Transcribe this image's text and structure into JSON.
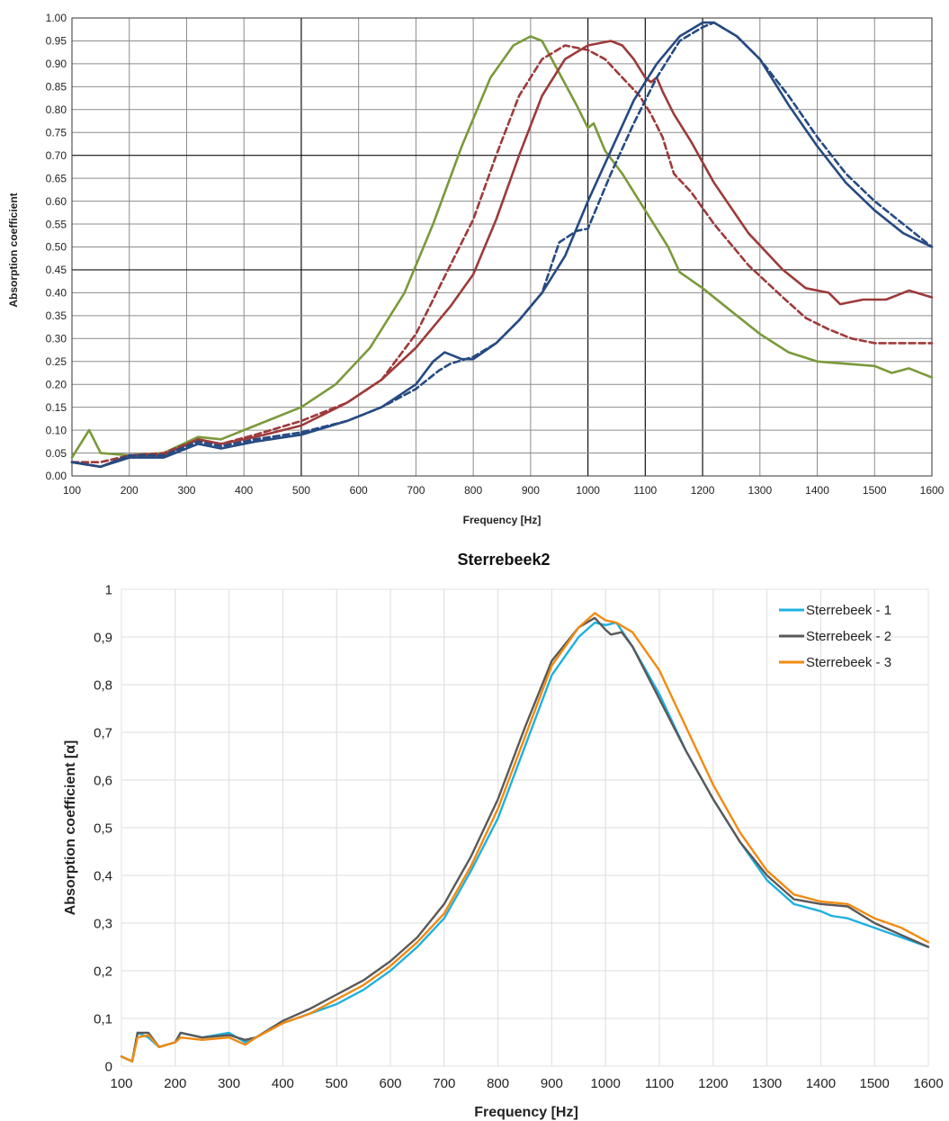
{
  "chart_data": [
    {
      "type": "line",
      "title": "",
      "xlabel": "Frequency [Hz]",
      "ylabel": "Absorption coefficient",
      "xlim": [
        100,
        1600
      ],
      "ylim": [
        0,
        1
      ],
      "grid": true,
      "legend": "none",
      "x_ticks": [
        "100",
        "200",
        "300",
        "400",
        "500",
        "600",
        "700",
        "800",
        "900",
        "1000",
        "1100",
        "1200",
        "1300",
        "1400",
        "1500",
        "1600"
      ],
      "y_ticks": [
        "0.00",
        "0.05",
        "0.10",
        "0.15",
        "0.20",
        "0.25",
        "0.30",
        "0.35",
        "0.40",
        "0.45",
        "0.50",
        "0.55",
        "0.60",
        "0.65",
        "0.70",
        "0.75",
        "0.80",
        "0.85",
        "0.90",
        "0.95",
        "1.00"
      ],
      "series": [
        {
          "color": "#7a9a3a",
          "dash": "solid",
          "x": [
            100,
            130,
            150,
            200,
            260,
            320,
            360,
            420,
            500,
            560,
            620,
            680,
            730,
            780,
            830,
            870,
            900,
            920,
            950,
            980,
            1000,
            1010,
            1030,
            1060,
            1100,
            1140,
            1160,
            1200,
            1250,
            1300,
            1350,
            1400,
            1450,
            1500,
            1530,
            1560,
            1600
          ],
          "y": [
            0.04,
            0.1,
            0.05,
            0.045,
            0.05,
            0.085,
            0.08,
            0.11,
            0.15,
            0.2,
            0.28,
            0.4,
            0.55,
            0.72,
            0.87,
            0.94,
            0.96,
            0.95,
            0.88,
            0.81,
            0.76,
            0.77,
            0.71,
            0.66,
            0.58,
            0.5,
            0.445,
            0.41,
            0.36,
            0.31,
            0.27,
            0.25,
            0.245,
            0.24,
            0.225,
            0.235,
            0.215
          ]
        },
        {
          "color": "#9e3a3a",
          "dash": "dashed",
          "x": [
            100,
            150,
            200,
            260,
            320,
            360,
            420,
            500,
            580,
            640,
            700,
            760,
            800,
            840,
            880,
            920,
            960,
            1000,
            1030,
            1060,
            1090,
            1110,
            1130,
            1150,
            1180,
            1220,
            1280,
            1340,
            1380,
            1420,
            1460,
            1500,
            1550,
            1600
          ],
          "y": [
            0.03,
            0.03,
            0.045,
            0.05,
            0.08,
            0.07,
            0.09,
            0.12,
            0.16,
            0.21,
            0.31,
            0.46,
            0.56,
            0.7,
            0.83,
            0.91,
            0.94,
            0.93,
            0.91,
            0.87,
            0.83,
            0.79,
            0.74,
            0.66,
            0.62,
            0.55,
            0.46,
            0.39,
            0.345,
            0.32,
            0.3,
            0.29,
            0.29,
            0.29
          ]
        },
        {
          "color": "#9e3a3a",
          "dash": "solid",
          "x": [
            100,
            150,
            200,
            260,
            320,
            360,
            420,
            500,
            580,
            640,
            700,
            760,
            800,
            840,
            880,
            920,
            960,
            1000,
            1040,
            1060,
            1080,
            1100,
            1110,
            1120,
            1130,
            1150,
            1180,
            1220,
            1280,
            1340,
            1380,
            1420,
            1440,
            1480,
            1520,
            1560,
            1600
          ],
          "y": [
            0.03,
            0.02,
            0.045,
            0.045,
            0.08,
            0.07,
            0.085,
            0.11,
            0.16,
            0.21,
            0.28,
            0.37,
            0.44,
            0.56,
            0.7,
            0.83,
            0.91,
            0.94,
            0.95,
            0.94,
            0.91,
            0.87,
            0.86,
            0.87,
            0.84,
            0.79,
            0.73,
            0.64,
            0.53,
            0.45,
            0.41,
            0.4,
            0.375,
            0.385,
            0.385,
            0.405,
            0.39
          ]
        },
        {
          "color": "#264a82",
          "dash": "dashed",
          "x": [
            100,
            150,
            200,
            260,
            320,
            360,
            420,
            500,
            580,
            640,
            700,
            740,
            760,
            800,
            840,
            880,
            920,
            950,
            980,
            1000,
            1040,
            1080,
            1120,
            1160,
            1200,
            1220,
            1260,
            1300,
            1350,
            1400,
            1450,
            1500,
            1560,
            1600
          ],
          "y": [
            0.03,
            0.02,
            0.045,
            0.045,
            0.075,
            0.065,
            0.08,
            0.095,
            0.12,
            0.15,
            0.19,
            0.23,
            0.245,
            0.26,
            0.29,
            0.34,
            0.4,
            0.51,
            0.535,
            0.54,
            0.66,
            0.77,
            0.87,
            0.95,
            0.98,
            0.99,
            0.96,
            0.91,
            0.83,
            0.74,
            0.66,
            0.6,
            0.54,
            0.5
          ]
        },
        {
          "color": "#264a82",
          "dash": "solid",
          "x": [
            100,
            150,
            200,
            260,
            320,
            360,
            420,
            500,
            580,
            640,
            700,
            730,
            750,
            780,
            800,
            840,
            880,
            920,
            960,
            1000,
            1040,
            1080,
            1120,
            1160,
            1200,
            1220,
            1260,
            1300,
            1350,
            1400,
            1450,
            1500,
            1550,
            1600
          ],
          "y": [
            0.03,
            0.02,
            0.04,
            0.04,
            0.07,
            0.06,
            0.075,
            0.09,
            0.12,
            0.15,
            0.2,
            0.25,
            0.27,
            0.255,
            0.255,
            0.29,
            0.34,
            0.4,
            0.48,
            0.6,
            0.71,
            0.82,
            0.9,
            0.96,
            0.99,
            0.99,
            0.96,
            0.91,
            0.81,
            0.72,
            0.64,
            0.58,
            0.53,
            0.5
          ]
        }
      ]
    },
    {
      "type": "line",
      "title": "Sterrebeek2",
      "xlabel": "Frequency [Hz]",
      "ylabel": "Absorption coefficient [α]",
      "xlim": [
        100,
        1600
      ],
      "ylim": [
        0,
        1
      ],
      "grid": true,
      "legend": "top-right",
      "x_ticks": [
        "100",
        "200",
        "300",
        "400",
        "500",
        "600",
        "700",
        "800",
        "900",
        "1000",
        "1100",
        "1200",
        "1300",
        "1400",
        "1500",
        "1600"
      ],
      "y_ticks": [
        "0",
        "0,1",
        "0,2",
        "0,3",
        "0,4",
        "0,5",
        "0,6",
        "0,7",
        "0,8",
        "0,9",
        "1"
      ],
      "series": [
        {
          "name": "Sterrebeek - 1",
          "color": "#1fb0e0",
          "x": [
            100,
            120,
            130,
            150,
            170,
            200,
            210,
            250,
            300,
            330,
            350,
            400,
            450,
            500,
            550,
            600,
            650,
            700,
            750,
            800,
            850,
            900,
            950,
            980,
            1000,
            1020,
            1050,
            1100,
            1150,
            1200,
            1250,
            1300,
            1350,
            1400,
            1420,
            1450,
            1500,
            1550,
            1600
          ],
          "y": [
            0.02,
            0.01,
            0.07,
            0.06,
            0.04,
            0.05,
            0.07,
            0.06,
            0.07,
            0.05,
            0.06,
            0.09,
            0.11,
            0.13,
            0.16,
            0.2,
            0.25,
            0.31,
            0.41,
            0.52,
            0.67,
            0.82,
            0.9,
            0.93,
            0.925,
            0.93,
            0.88,
            0.78,
            0.66,
            0.56,
            0.47,
            0.39,
            0.34,
            0.325,
            0.315,
            0.31,
            0.29,
            0.27,
            0.25
          ]
        },
        {
          "name": "Sterrebeek - 2",
          "color": "#595959",
          "x": [
            100,
            120,
            130,
            150,
            170,
            200,
            210,
            250,
            300,
            330,
            350,
            400,
            450,
            500,
            550,
            600,
            650,
            700,
            750,
            800,
            850,
            900,
            950,
            980,
            1000,
            1010,
            1030,
            1050,
            1100,
            1150,
            1200,
            1250,
            1300,
            1350,
            1400,
            1450,
            1500,
            1550,
            1600
          ],
          "y": [
            0.02,
            0.01,
            0.07,
            0.07,
            0.04,
            0.05,
            0.07,
            0.06,
            0.065,
            0.055,
            0.06,
            0.095,
            0.12,
            0.15,
            0.18,
            0.22,
            0.27,
            0.34,
            0.44,
            0.56,
            0.71,
            0.85,
            0.92,
            0.94,
            0.915,
            0.905,
            0.91,
            0.88,
            0.77,
            0.66,
            0.56,
            0.47,
            0.4,
            0.35,
            0.34,
            0.335,
            0.3,
            0.275,
            0.25
          ]
        },
        {
          "name": "Sterrebeek - 3",
          "color": "#f28a10",
          "x": [
            100,
            120,
            130,
            150,
            170,
            200,
            210,
            250,
            300,
            330,
            350,
            400,
            450,
            500,
            550,
            600,
            650,
            700,
            750,
            800,
            850,
            900,
            950,
            980,
            1000,
            1020,
            1050,
            1100,
            1150,
            1200,
            1250,
            1300,
            1350,
            1400,
            1450,
            1500,
            1550,
            1600
          ],
          "y": [
            0.02,
            0.01,
            0.06,
            0.065,
            0.04,
            0.05,
            0.06,
            0.055,
            0.06,
            0.045,
            0.06,
            0.09,
            0.11,
            0.14,
            0.17,
            0.21,
            0.26,
            0.32,
            0.42,
            0.54,
            0.69,
            0.84,
            0.92,
            0.95,
            0.935,
            0.93,
            0.91,
            0.83,
            0.71,
            0.59,
            0.49,
            0.41,
            0.36,
            0.345,
            0.34,
            0.31,
            0.29,
            0.26
          ]
        }
      ]
    }
  ]
}
